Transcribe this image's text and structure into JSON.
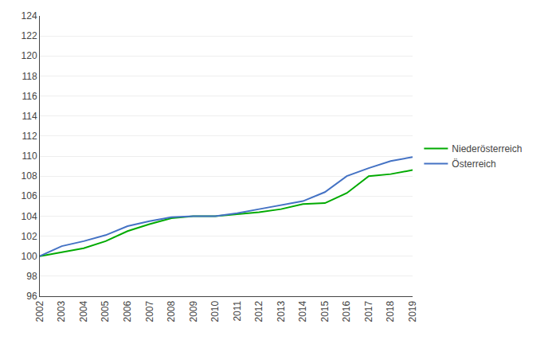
{
  "chart_data": {
    "type": "line",
    "x": [
      2002,
      2003,
      2004,
      2005,
      2006,
      2007,
      2008,
      2009,
      2010,
      2011,
      2012,
      2013,
      2014,
      2015,
      2016,
      2017,
      2018,
      2019
    ],
    "series": [
      {
        "name": "Niederösterreich",
        "color": "#00aa00",
        "values": [
          100.0,
          100.4,
          100.8,
          101.5,
          102.5,
          103.2,
          103.8,
          104.0,
          104.0,
          104.2,
          104.4,
          104.7,
          105.2,
          105.3,
          106.3,
          108.0,
          108.2,
          108.6
        ]
      },
      {
        "name": "Österreich",
        "color": "#4472c4",
        "values": [
          100.0,
          101.0,
          101.5,
          102.1,
          103.0,
          103.5,
          103.9,
          104.0,
          104.0,
          104.3,
          104.7,
          105.1,
          105.5,
          106.4,
          108.0,
          108.8,
          109.5,
          109.9
        ]
      }
    ],
    "xlim": [
      2002,
      2019
    ],
    "xticks": [
      2002,
      2003,
      2004,
      2005,
      2006,
      2007,
      2008,
      2009,
      2010,
      2011,
      2012,
      2013,
      2014,
      2015,
      2016,
      2017,
      2018,
      2019
    ],
    "ylim": [
      96,
      124
    ],
    "yticks": [
      96,
      98,
      100,
      102,
      104,
      106,
      108,
      110,
      112,
      114,
      116,
      118,
      120,
      122,
      124
    ],
    "grid": true,
    "legend": "right"
  }
}
